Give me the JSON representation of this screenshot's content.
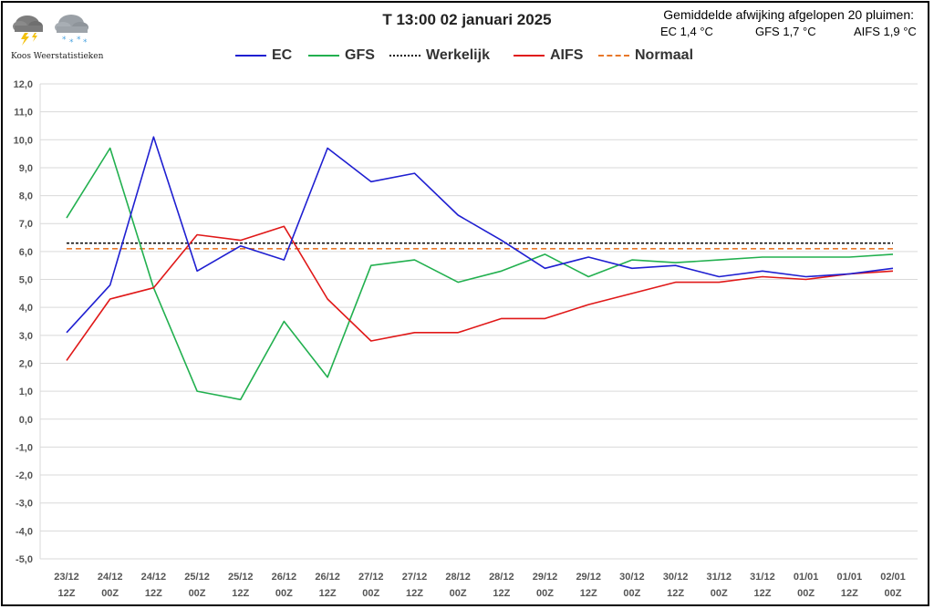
{
  "header": {
    "title": "T 13:00 02 januari 2025",
    "brand": "Koos Weerstatistieken",
    "deviation_heading": "Gemiddelde afwijking afgelopen 20 pluimen:",
    "deviation_ec": "EC 1,4 °C",
    "deviation_gfs": "GFS 1,7 °C",
    "deviation_aifs": "AIFS 1,9 °C"
  },
  "icons": [
    "thunderstorm-cloud-icon",
    "snow-cloud-icon"
  ],
  "chart_data": {
    "type": "line",
    "title": "T 13:00 02 januari 2025",
    "xlabel": "",
    "ylabel": "",
    "ylim": [
      -5,
      12
    ],
    "yticks": [
      "12,0",
      "11,0",
      "10,0",
      "9,0",
      "8,0",
      "7,0",
      "6,0",
      "5,0",
      "4,0",
      "3,0",
      "2,0",
      "1,0",
      "0,0",
      "-1,0",
      "-2,0",
      "-3,0",
      "-4,0",
      "-5,0"
    ],
    "categories": [
      [
        "23/12",
        "12Z"
      ],
      [
        "24/12",
        "00Z"
      ],
      [
        "24/12",
        "12Z"
      ],
      [
        "25/12",
        "00Z"
      ],
      [
        "25/12",
        "12Z"
      ],
      [
        "26/12",
        "00Z"
      ],
      [
        "26/12",
        "12Z"
      ],
      [
        "27/12",
        "00Z"
      ],
      [
        "27/12",
        "12Z"
      ],
      [
        "28/12",
        "00Z"
      ],
      [
        "28/12",
        "12Z"
      ],
      [
        "29/12",
        "00Z"
      ],
      [
        "29/12",
        "12Z"
      ],
      [
        "30/12",
        "00Z"
      ],
      [
        "30/12",
        "12Z"
      ],
      [
        "31/12",
        "00Z"
      ],
      [
        "31/12",
        "12Z"
      ],
      [
        "01/01",
        "00Z"
      ],
      [
        "01/01",
        "12Z"
      ],
      [
        "02/01",
        "00Z"
      ]
    ],
    "grid": true,
    "legend_position": "top",
    "series": [
      {
        "name": "EC",
        "color": "#1f1fd1",
        "dash": "solid",
        "values": [
          3.1,
          4.8,
          10.1,
          5.3,
          6.2,
          5.7,
          9.7,
          8.5,
          8.8,
          7.3,
          6.4,
          5.4,
          5.8,
          5.4,
          5.5,
          5.1,
          5.3,
          5.1,
          5.2,
          5.4
        ]
      },
      {
        "name": "GFS",
        "color": "#22b04f",
        "dash": "solid",
        "values": [
          7.2,
          9.7,
          4.7,
          1.0,
          0.7,
          3.5,
          1.5,
          5.5,
          5.7,
          4.9,
          5.3,
          5.9,
          5.1,
          5.7,
          5.6,
          5.7,
          5.8,
          5.8,
          5.8,
          5.9
        ]
      },
      {
        "name": "Werkelijk",
        "color": "#111111",
        "dash": "dotted",
        "values": [
          6.3,
          6.3,
          6.3,
          6.3,
          6.3,
          6.3,
          6.3,
          6.3,
          6.3,
          6.3,
          6.3,
          6.3,
          6.3,
          6.3,
          6.3,
          6.3,
          6.3,
          6.3,
          6.3,
          6.3
        ]
      },
      {
        "name": "AIFS",
        "color": "#e01818",
        "dash": "solid",
        "values": [
          2.1,
          4.3,
          4.7,
          6.6,
          6.4,
          6.9,
          4.3,
          2.8,
          3.1,
          3.1,
          3.6,
          3.6,
          4.1,
          4.5,
          4.9,
          4.9,
          5.1,
          5.0,
          5.2,
          5.3
        ]
      },
      {
        "name": "Normaal",
        "color": "#e8782a",
        "dash": "dashed",
        "values": [
          6.1,
          6.1,
          6.1,
          6.1,
          6.1,
          6.1,
          6.1,
          6.1,
          6.1,
          6.1,
          6.1,
          6.1,
          6.1,
          6.1,
          6.1,
          6.1,
          6.1,
          6.1,
          6.1,
          6.1
        ]
      }
    ]
  }
}
